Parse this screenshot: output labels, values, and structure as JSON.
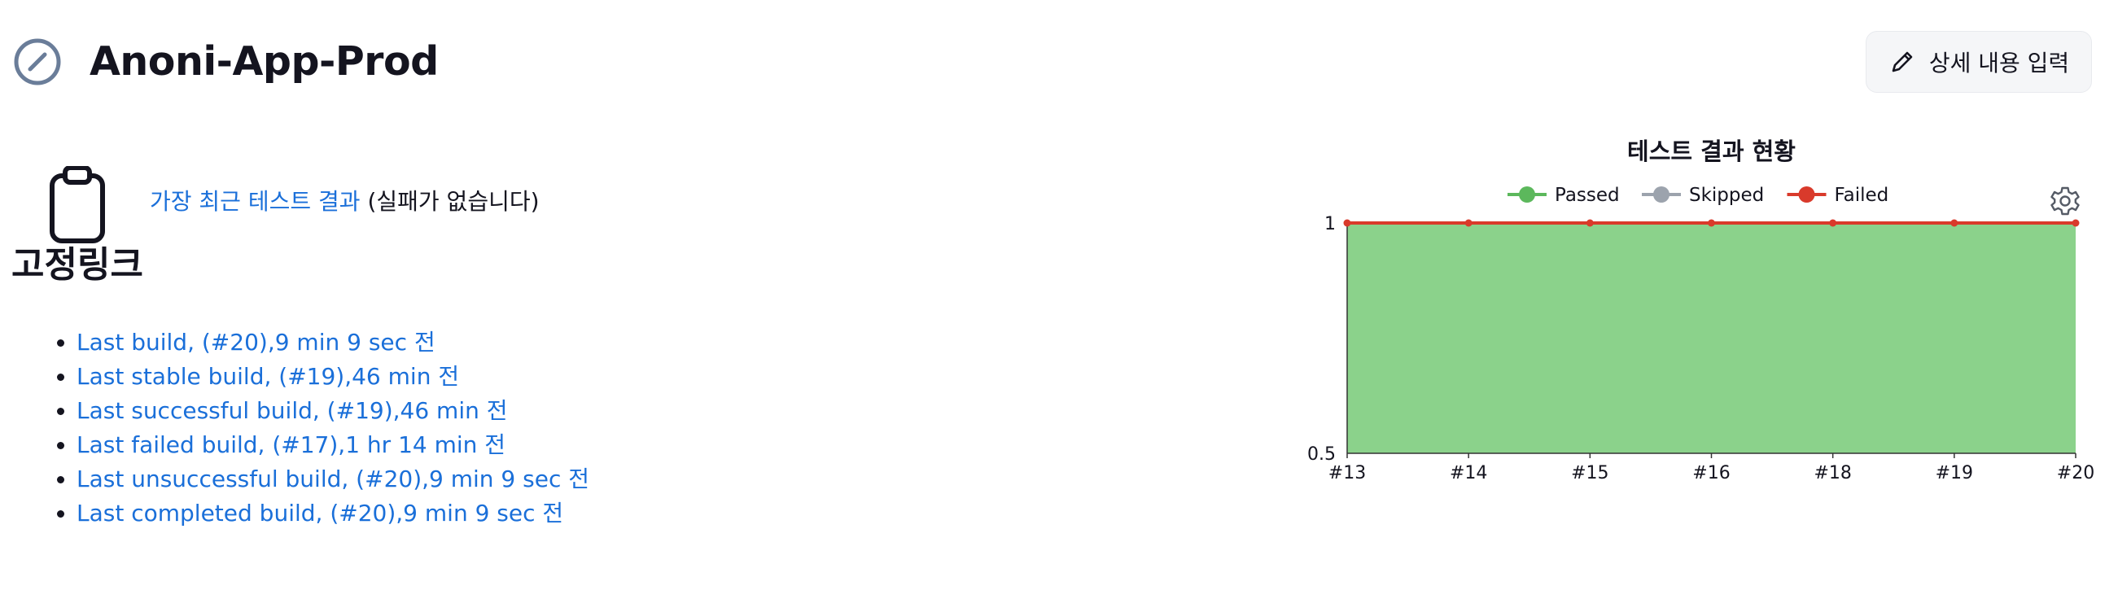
{
  "header": {
    "title": "Anoni-App-Prod",
    "status_icon": "disabled-circle-icon",
    "edit_description_label": "상세 내용 입력",
    "edit_icon": "pencil-icon"
  },
  "permalinks": {
    "icon": "clipboard-icon",
    "heading": "고정링크",
    "latest_test_result_link": "가장 최근 테스트 결과",
    "latest_test_result_note": "(실패가 없습니다)",
    "builds": [
      {
        "label": "Last build, (#20),9 min 9 sec 전"
      },
      {
        "label": "Last stable build, (#19),46 min 전"
      },
      {
        "label": "Last successful build, (#19),46 min 전"
      },
      {
        "label": "Last failed build, (#17),1 hr 14 min 전"
      },
      {
        "label": "Last unsuccessful build, (#20),9 min 9 sec 전"
      },
      {
        "label": "Last completed build, (#20),9 min 9 sec 전"
      }
    ]
  },
  "chart": {
    "settings_icon": "gear-icon",
    "colors": {
      "passed": "#8bd28b",
      "passed_line": "#5cb85c",
      "skipped": "#9ca3ad",
      "failed": "#d93a2b",
      "axis": "#333333"
    }
  },
  "chart_data": {
    "type": "area",
    "title": "테스트 결과 현황",
    "categories": [
      "#13",
      "#14",
      "#15",
      "#16",
      "#18",
      "#19",
      "#20"
    ],
    "series": [
      {
        "name": "Passed",
        "values": [
          1,
          1,
          1,
          1,
          1,
          1,
          1
        ]
      },
      {
        "name": "Skipped",
        "values": [
          0,
          0,
          0,
          0,
          0,
          0,
          0
        ]
      },
      {
        "name": "Failed",
        "values": [
          0,
          0,
          0,
          0,
          0,
          0,
          0
        ]
      }
    ],
    "y_ticks": [
      "1",
      "0.5"
    ],
    "ylim": [
      0.5,
      1
    ],
    "legend_position": "top"
  }
}
